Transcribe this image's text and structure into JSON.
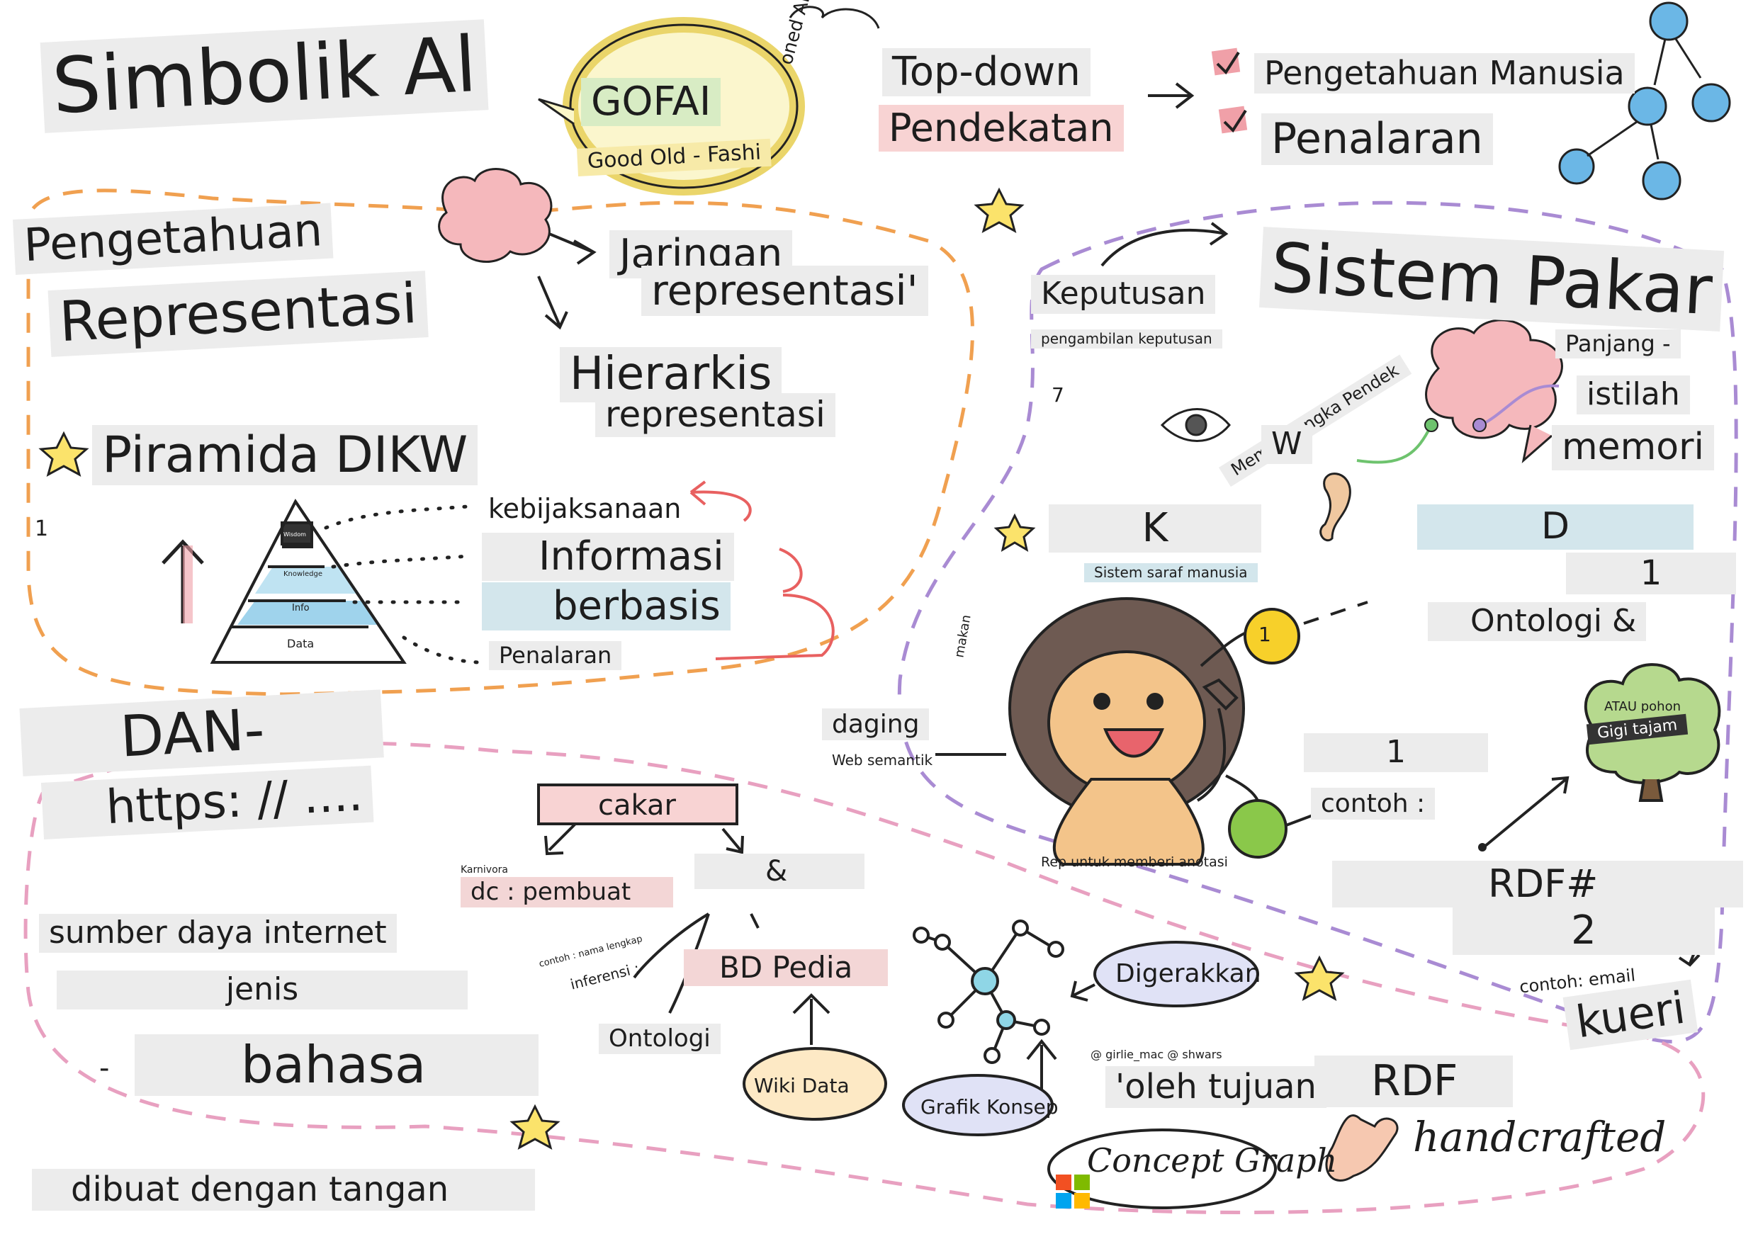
{
  "title": "Simbolik Al",
  "gofai": {
    "label": "GOFAI",
    "subtitle": "Good Old - Fashi",
    "side_text": "oned AI"
  },
  "approach": {
    "line1": "Top-down",
    "line2": "Pendekatan",
    "items": [
      "Pengetahuan Manusia",
      "Penalaran"
    ]
  },
  "knowledge": {
    "pengetahuan": "Pengetahuan",
    "representasi": "Representasi",
    "jaringan": "Jaringan",
    "jaringan_rep": "representasi'",
    "hierarkis": "Hierarkis",
    "hierarkis_rep": "representasi"
  },
  "dikw": {
    "title": "Piramida DIKW",
    "number": "1",
    "levels": [
      "kebijaksanaan",
      "Informasi",
      "berbasis",
      "Penalaran"
    ],
    "pyramid_labels": [
      "Data",
      "Info",
      "Knowledge",
      "Wisdom"
    ]
  },
  "expert": {
    "title": "Sistem Pakar",
    "keputusan": "Keputusan",
    "pengambilan": "pengambilan keputusan",
    "seven": "7",
    "short_memory": "Memori Jangka Pendek",
    "w": "W",
    "panjang": "Panjang -",
    "istilah": "istilah",
    "memori": "memori",
    "k": "K",
    "sistem_saraf": "Sistem saraf manusia",
    "d": "D",
    "one": "1"
  },
  "ontology": {
    "title": "Ontologi &",
    "makan": "makan",
    "daging": "daging",
    "web_semantik": "Web semantik",
    "yellow_one": "1",
    "one_mid": "1",
    "contoh": "contoh :",
    "tree_top": "ATAU pohon",
    "tree_tag": "Gigi tajam",
    "rep": "Rep untuk memberi anotasi"
  },
  "left_bottom": {
    "dan": "DAN-",
    "https": "https: // ....",
    "sumber": "sumber daya internet",
    "jenis": "jenis",
    "bahasa": "bahasa",
    "dash": "-",
    "dibuat": "dibuat dengan tangan"
  },
  "graph": {
    "cakar": "cakar",
    "karnivora": "Karnivora",
    "dc_pembuat": "dc : pembuat",
    "amp": "&",
    "contoh_nama": "contoh : nama lengkap",
    "inferensi": "inferensi ;",
    "bd_pedia": "BD Pedia",
    "ontologi": "Ontologi",
    "wiki_data": "Wiki Data",
    "digerakkan": "Digerakkan",
    "author": "@ girlie_mac @ shwars",
    "grafik": "Grafik Konsep",
    "oleh": "'oleh tujuan",
    "concept_graph": "Concept Graph"
  },
  "rdf": {
    "rdf_hash": "RDF#",
    "two": "2",
    "email": "contoh: email",
    "kueri": "kueri",
    "rdf": "RDF",
    "handcrafted": "handcrafted"
  },
  "colors": {
    "orange": "#f0a050",
    "purple": "#a98bd3",
    "pink": "#e8a0c0",
    "blue": "#5fb0e0",
    "yellow": "#f7d02a",
    "green": "#8ac84a"
  }
}
